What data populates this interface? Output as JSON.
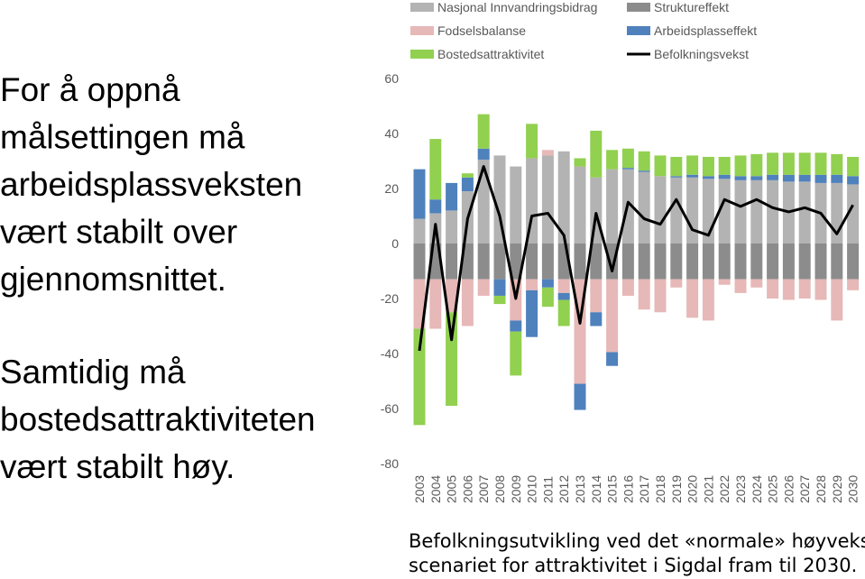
{
  "text_blocks": [
    [
      "For å oppnå",
      "målsettingen må",
      "arbeidsplassveksten",
      "vært stabilt over",
      "gjennomsnittet."
    ],
    [
      "Samtidig må",
      "bostedsattraktiviteten",
      "vært stabilt høy."
    ]
  ],
  "caption": [
    "Befolkningsutvikling ved det «normale» høyvekst-",
    "scenariet for attraktivitet i Sigdal fram til 2030."
  ],
  "chart_data": {
    "type": "bar",
    "stacked": true,
    "categories": [
      "2003",
      "2004",
      "2005",
      "2006",
      "2007",
      "2008",
      "2009",
      "2010",
      "2011",
      "2012",
      "2013",
      "2014",
      "2015",
      "2016",
      "2017",
      "2018",
      "2019",
      "2020",
      "2021",
      "2022",
      "2023",
      "2024",
      "2025",
      "2026",
      "2027",
      "2028",
      "2029",
      "2030"
    ],
    "series": [
      {
        "name": "Nasjonal Innvandringsbidrag",
        "color": "#b3b3b3",
        "values": [
          9,
          11,
          12,
          19,
          30.5,
          32,
          28,
          31,
          32,
          33.5,
          28,
          24,
          27,
          27,
          26,
          24.5,
          24,
          24,
          23.5,
          23.5,
          23,
          23,
          23,
          22.5,
          22.5,
          22,
          22,
          21.5
        ]
      },
      {
        "name": "Struktureffekt",
        "color": "#8c8c8c",
        "values": [
          -13,
          -13,
          -13,
          -13,
          -13,
          -13,
          -13,
          -13,
          -13,
          -13,
          -13,
          -13,
          -13,
          -13,
          -13,
          -13,
          -13,
          -13,
          -13,
          -13,
          -13,
          -13,
          -13,
          -13,
          -13,
          -13,
          -13,
          -13
        ]
      },
      {
        "name": "Fodselsbalanse",
        "color": "#e6b8b7",
        "values": [
          -18,
          -18,
          -12,
          -17,
          -6,
          0,
          -15,
          -4,
          2,
          -5,
          -38,
          -12,
          -26.5,
          -6,
          -11,
          -12,
          -3,
          -14,
          -15,
          -2,
          -5,
          -3,
          -7,
          -7.5,
          -7,
          -7.5,
          -15,
          -4
        ]
      },
      {
        "name": "Arbeidsplasseffekt",
        "color": "#4f81bd",
        "values": [
          18,
          5,
          10,
          5,
          4,
          -6,
          -4,
          -17,
          -3,
          -2.5,
          -9.5,
          -5,
          -5,
          0.5,
          0.5,
          0,
          0.5,
          1,
          1,
          1.5,
          1.5,
          1.5,
          2,
          2.5,
          2.5,
          3,
          3,
          3
        ]
      },
      {
        "name": "Bostedsattraktivitet",
        "color": "#92d050",
        "values": [
          -35,
          22,
          -34,
          1.5,
          12.5,
          -3,
          -16,
          12.5,
          -7,
          -9.5,
          3,
          17,
          7,
          7,
          7,
          7.5,
          7,
          7,
          7,
          6.5,
          7.5,
          8,
          8,
          8,
          8,
          8,
          7.5,
          7
        ]
      },
      {
        "name": "Befolkningsvekst",
        "color": "#000000",
        "type": "line",
        "values": [
          -39,
          7,
          -35,
          9,
          28,
          10,
          -20,
          10,
          11,
          3,
          -29,
          11,
          -10,
          15,
          9,
          7,
          16,
          5,
          3,
          16,
          13.5,
          16,
          13,
          11.5,
          13,
          11,
          3.5,
          14
        ]
      }
    ],
    "ylim": [
      -80,
      60
    ],
    "yticks": [
      -80,
      -60,
      -40,
      -20,
      0,
      20,
      40,
      60
    ],
    "grid": false
  }
}
